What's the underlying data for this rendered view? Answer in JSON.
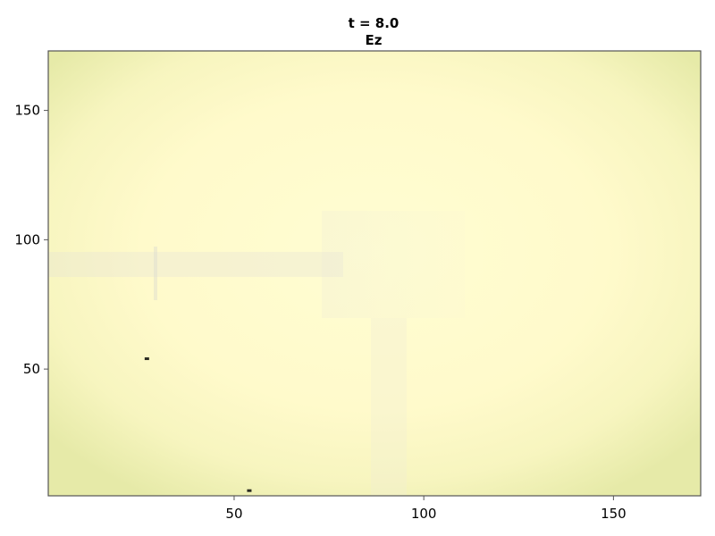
{
  "chart_data": {
    "type": "heatmap",
    "title": "t = 8.0",
    "subtitle": "Ez",
    "xlabel": "",
    "ylabel": "",
    "xlim": [
      1,
      173
    ],
    "ylim": [
      1,
      173
    ],
    "x_ticks": [
      50,
      100,
      150
    ],
    "y_ticks": [
      50,
      100,
      150
    ],
    "grid": false,
    "colormap": "light yellow field with near-uniform values",
    "colors": {
      "center": "#fffbcc",
      "edge": "#e8ebaa",
      "dark_marker": "#2b2b22",
      "frame": "#555555"
    },
    "markers": [
      {
        "x": 27,
        "y": 54
      },
      {
        "x": 54,
        "y": 3
      }
    ]
  }
}
